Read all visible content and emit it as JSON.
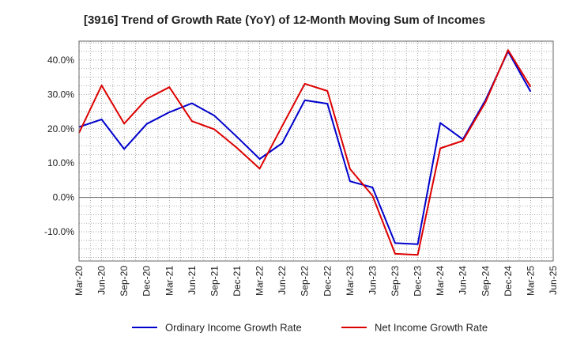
{
  "chart_data": {
    "type": "line",
    "title": "[3916]  Trend of Growth Rate (YoY) of 12-Month Moving Sum of Incomes",
    "xlabel": "",
    "ylabel": "",
    "x": [
      "Mar-20",
      "Jun-20",
      "Sep-20",
      "Dec-20",
      "Mar-21",
      "Jun-21",
      "Sep-21",
      "Dec-21",
      "Mar-22",
      "Jun-22",
      "Sep-22",
      "Dec-22",
      "Mar-23",
      "Jun-23",
      "Sep-23",
      "Dec-23",
      "Mar-24",
      "Jun-24",
      "Sep-24",
      "Dec-24",
      "Mar-25",
      "Jun-25"
    ],
    "ylim": [
      -18.5,
      45.5
    ],
    "y_ticks": [
      40,
      30,
      20,
      10,
      0,
      -10
    ],
    "y_tick_labels": [
      "40.0%",
      "30.0%",
      "20.0%",
      "10.0%",
      "0.0%",
      "-10.0%"
    ],
    "grid": true,
    "legend_position": "bottom",
    "series": [
      {
        "name": "Ordinary Income Growth Rate",
        "color": "#0000cc",
        "values": [
          20.5,
          22.7,
          14.1,
          21.4,
          24.8,
          27.4,
          23.8,
          17.6,
          11.2,
          15.8,
          28.3,
          27.3,
          4.7,
          2.9,
          -13.3,
          -13.6,
          21.7,
          16.9,
          28.3,
          42.5,
          30.8,
          null
        ]
      },
      {
        "name": "Net Income Growth Rate",
        "color": "#dd0000",
        "values": [
          18.8,
          32.6,
          21.5,
          28.7,
          32.1,
          22.2,
          19.8,
          14.4,
          8.4,
          20.8,
          33.1,
          31.0,
          8.3,
          0.5,
          -16.4,
          -16.7,
          14.3,
          16.5,
          27.7,
          42.9,
          32.2,
          null
        ]
      }
    ]
  }
}
